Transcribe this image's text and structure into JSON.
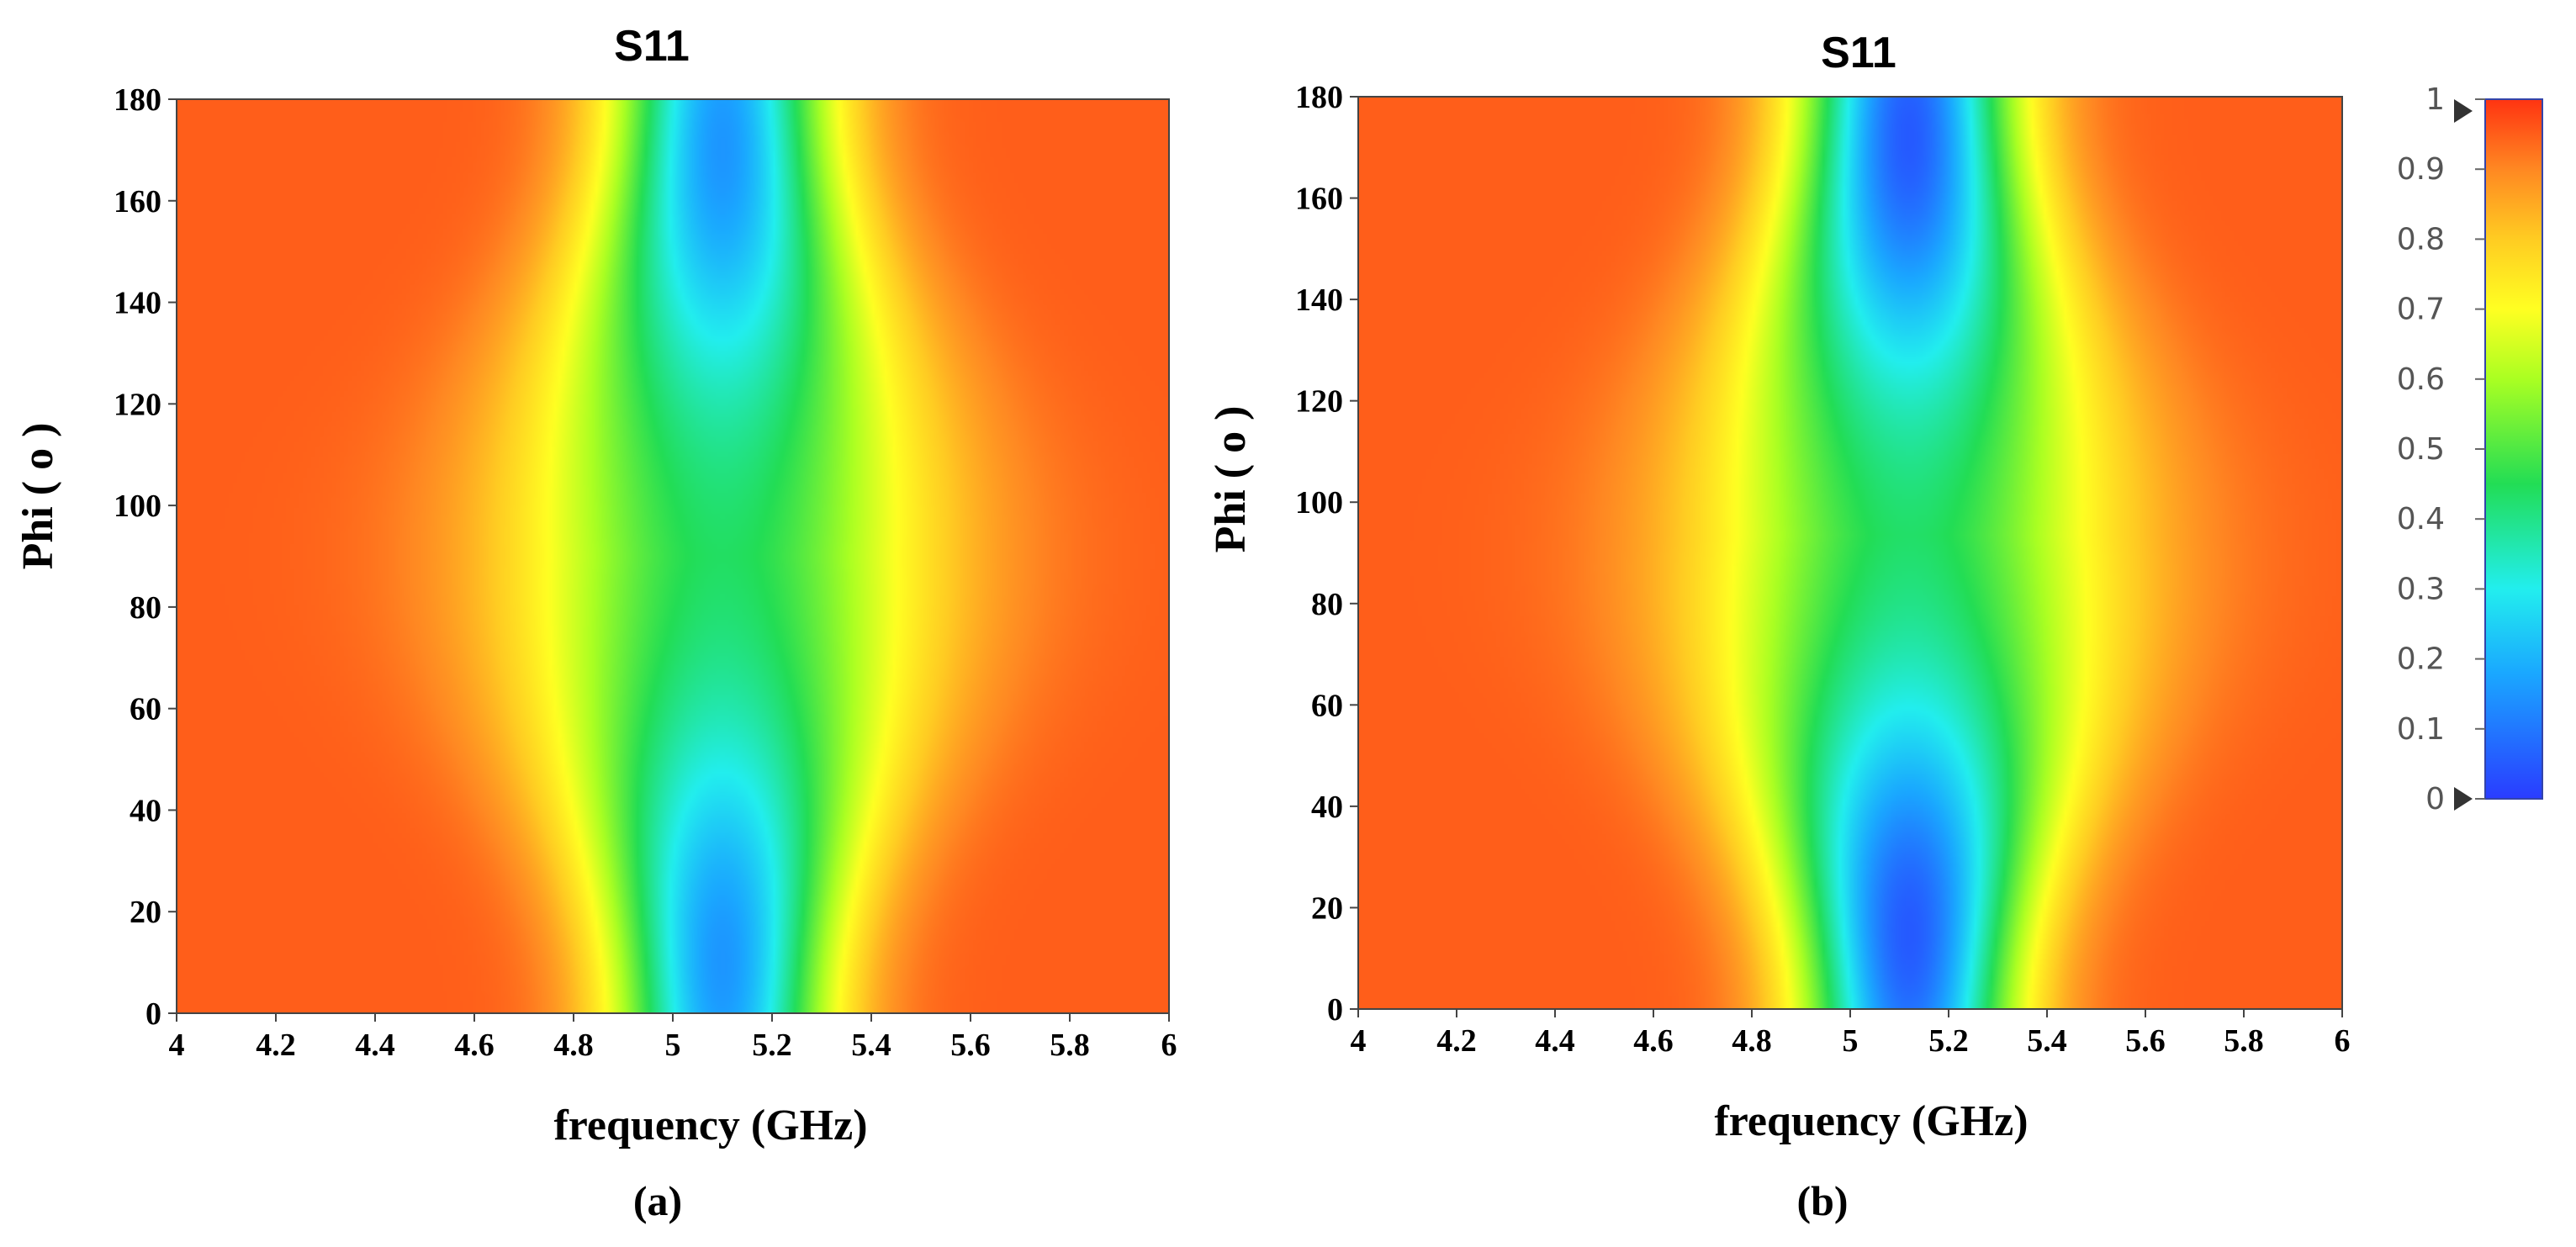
{
  "chart_data": [
    {
      "type": "heatmap",
      "panel": "(a)",
      "title": "S11",
      "xlabel": "frequency (GHz)",
      "ylabel": "Phi ( o )",
      "xlim": [
        4,
        6
      ],
      "ylim": [
        0,
        180
      ],
      "x_ticks": [
        "4",
        "4.2",
        "4.4",
        "4.6",
        "4.8",
        "5",
        "5.2",
        "5.4",
        "5.6",
        "5.8",
        "6"
      ],
      "y_ticks": [
        "0",
        "20",
        "40",
        "60",
        "80",
        "100",
        "120",
        "140",
        "160",
        "180"
      ],
      "resonance_center_ghz": 5.1,
      "min_value": 0.15,
      "min_locations": [
        {
          "freq_ghz": 5.1,
          "phi_deg": 10
        },
        {
          "freq_ghz": 5.1,
          "phi_deg": 170
        }
      ],
      "max_value": 0.95
    },
    {
      "type": "heatmap",
      "panel": "(b)",
      "title": "S11",
      "xlabel": "frequency (GHz)",
      "ylabel": "Phi ( o )",
      "xlim": [
        4,
        6
      ],
      "ylim": [
        0,
        180
      ],
      "x_ticks": [
        "4",
        "4.2",
        "4.4",
        "4.6",
        "4.8",
        "5",
        "5.2",
        "5.4",
        "5.6",
        "5.8",
        "6"
      ],
      "y_ticks": [
        "0",
        "20",
        "40",
        "60",
        "80",
        "100",
        "120",
        "140",
        "160",
        "180"
      ],
      "resonance_center_ghz": 5.12,
      "min_value": 0.05,
      "min_locations": [
        {
          "freq_ghz": 5.12,
          "phi_deg": 15
        },
        {
          "freq_ghz": 5.12,
          "phi_deg": 172
        }
      ],
      "max_value": 0.95
    }
  ],
  "colorbar": {
    "min": 0,
    "max": 1,
    "ticks": [
      "0",
      "0.1",
      "0.2",
      "0.3",
      "0.4",
      "0.5",
      "0.6",
      "0.7",
      "0.8",
      "0.9",
      "1"
    ],
    "colors": [
      "#2a3cff",
      "#1aa8ff",
      "#22eeee",
      "#22dd55",
      "#aaff22",
      "#ffff22",
      "#ffcc22",
      "#ff8822",
      "#ff3311"
    ]
  },
  "captions": [
    "(a)",
    "(b)"
  ]
}
